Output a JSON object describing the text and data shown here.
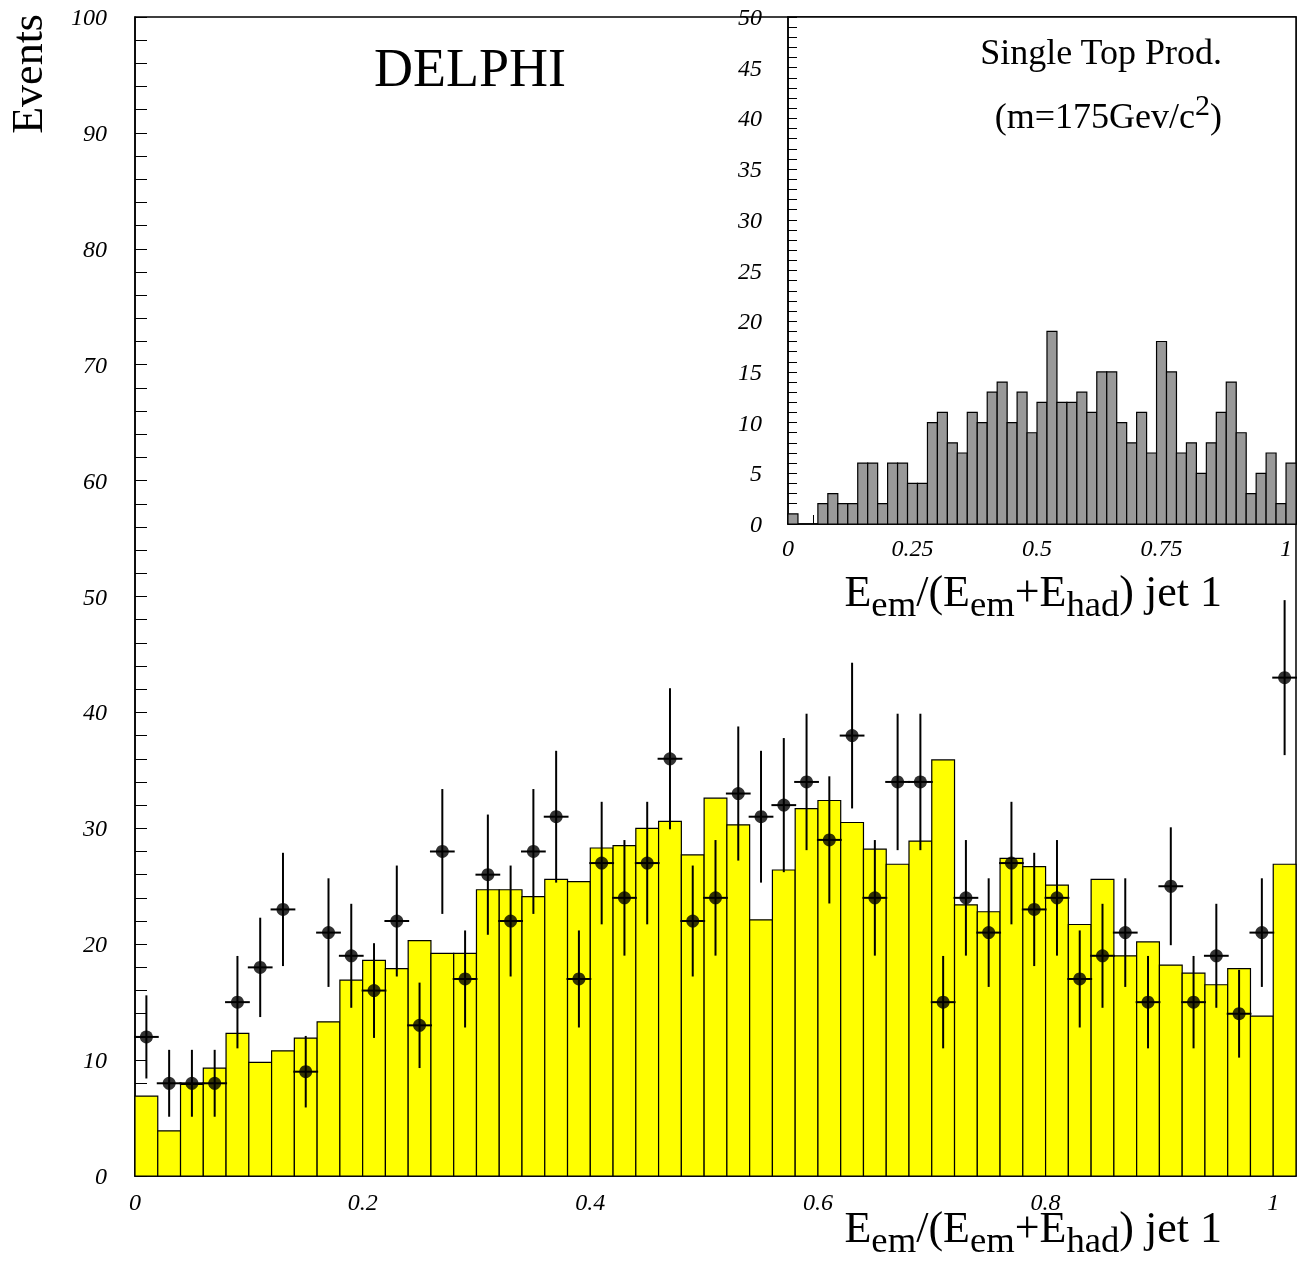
{
  "chart_data": [
    {
      "type": "histogram",
      "annotations": [
        "DELPHI"
      ],
      "xlabel": "E$_{em}$/(E$_{em}$+E$_{had}$) jet 1",
      "ylabel": "Events",
      "xlim": [
        0,
        1.02
      ],
      "marker": "circle",
      "xticks": [
        0,
        {
          "value": 0.05,
          "label": null
        },
        {
          "value": 0.1,
          "label": null
        },
        {
          "value": 0.15,
          "label": null
        },
        0.2,
        {
          "value": 0.25,
          "label": null
        },
        {
          "value": 0.3,
          "label": null
        },
        {
          "value": 0.35,
          "label": null
        },
        0.4,
        {
          "value": 0.45,
          "label": null
        },
        {
          "value": 0.5,
          "label": null
        },
        {
          "value": 0.55,
          "label": null
        },
        0.6,
        {
          "value": 0.65,
          "label": null
        },
        {
          "value": 0.7,
          "label": null
        },
        {
          "value": 0.75,
          "label": null
        },
        0.8,
        {
          "value": 0.85,
          "label": null
        },
        {
          "value": 0.9,
          "label": null
        },
        {
          "value": 0.95,
          "label": null
        },
        1
      ],
      "ylim": [
        0,
        100
      ],
      "yticks": [
        0,
        {
          "value": 2,
          "label": null
        },
        {
          "value": 4,
          "label": null
        },
        {
          "value": 6,
          "label": null
        },
        {
          "value": 8,
          "label": null
        },
        10,
        {
          "value": 12,
          "label": null
        },
        {
          "value": 14,
          "label": null
        },
        {
          "value": 16,
          "label": null
        },
        {
          "value": 18,
          "label": null
        },
        20,
        {
          "value": 22,
          "label": null
        },
        {
          "value": 24,
          "label": null
        },
        {
          "value": 26,
          "label": null
        },
        {
          "value": 28,
          "label": null
        },
        30,
        {
          "value": 32,
          "label": null
        },
        {
          "value": 34,
          "label": null
        },
        {
          "value": 36,
          "label": null
        },
        {
          "value": 38,
          "label": null
        },
        40,
        {
          "value": 42,
          "label": null
        },
        {
          "value": 44,
          "label": null
        },
        {
          "value": 46,
          "label": null
        },
        {
          "value": 48,
          "label": null
        },
        50,
        {
          "value": 52,
          "label": null
        },
        {
          "value": 54,
          "label": null
        },
        {
          "value": 56,
          "label": null
        },
        {
          "value": 58,
          "label": null
        },
        60,
        {
          "value": 62,
          "label": null
        },
        {
          "value": 64,
          "label": null
        },
        {
          "value": 66,
          "label": null
        },
        {
          "value": 68,
          "label": null
        },
        70,
        {
          "value": 72,
          "label": null
        },
        {
          "value": 74,
          "label": null
        },
        {
          "value": 76,
          "label": null
        },
        {
          "value": 78,
          "label": null
        },
        80,
        {
          "value": 82,
          "label": null
        },
        {
          "value": 84,
          "label": null
        },
        {
          "value": 86,
          "label": null
        },
        {
          "value": 88,
          "label": null
        },
        90,
        {
          "value": 92,
          "label": null
        },
        {
          "value": 94,
          "label": null
        },
        {
          "value": 96,
          "label": null
        },
        {
          "value": 98,
          "label": null
        },
        100
      ],
      "bins": [
        0,
        0.02,
        0.04,
        0.06,
        0.08,
        0.1,
        0.12,
        0.14,
        0.16,
        0.18,
        0.2,
        0.22,
        0.24,
        0.26,
        0.28,
        0.3,
        0.32,
        0.34,
        0.36,
        0.38,
        0.4,
        0.42,
        0.44,
        0.46,
        0.48,
        0.5,
        0.52,
        0.54,
        0.56,
        0.58,
        0.6,
        0.62,
        0.64,
        0.66,
        0.68,
        0.7,
        0.72,
        0.74,
        0.76,
        0.78,
        0.8,
        0.82,
        0.84,
        0.86,
        0.88,
        0.9,
        0.92,
        0.94,
        0.96,
        0.98,
        1,
        1.02
      ],
      "series": [
        {
          "type": "histogram",
          "color": "#ffff00",
          "values": [
            6.9,
            3.9,
            7.9,
            9.3,
            12.3,
            9.8,
            10.8,
            11.9,
            13.3,
            16.9,
            18.6,
            17.9,
            20.3,
            19.2,
            19.2,
            24.7,
            24.7,
            24.1,
            25.6,
            25.4,
            28.3,
            28.5,
            30.0,
            30.6,
            27.7,
            32.6,
            30.3,
            22.1,
            26.4,
            31.7,
            32.4,
            30.5,
            28.2,
            26.9,
            28.9,
            35.9,
            23.4,
            22.8,
            27.4,
            26.7,
            25.1,
            21.7,
            25.6,
            19.0,
            20.2,
            18.2,
            17.5,
            16.5,
            17.9,
            13.8,
            26.9
          ]
        },
        {
          "type": "scatter",
          "color": "#000000",
          "x": [
            0.01,
            0.03,
            0.05,
            0.07,
            0.09,
            0.11,
            0.13,
            0.15,
            0.17,
            0.19,
            0.21,
            0.23,
            0.25,
            0.27,
            0.29,
            0.31,
            0.33,
            0.35,
            0.37,
            0.39,
            0.41,
            0.43,
            0.45,
            0.47,
            0.49,
            0.51,
            0.53,
            0.55,
            0.57,
            0.59,
            0.61,
            0.63,
            0.65,
            0.67,
            0.69,
            0.71,
            0.73,
            0.75,
            0.77,
            0.79,
            0.81,
            0.83,
            0.85,
            0.87,
            0.89,
            0.91,
            0.93,
            0.95,
            0.97,
            0.99,
            1.01
          ],
          "values": [
            12,
            8,
            8,
            8,
            15,
            18,
            23,
            9,
            21,
            19,
            16,
            22,
            13,
            28,
            17,
            26,
            22,
            28,
            31,
            17,
            27,
            24,
            27,
            36,
            22,
            24,
            33,
            31,
            32,
            34,
            29,
            38,
            24,
            34,
            34,
            15,
            24,
            21,
            27,
            23,
            24,
            17,
            19,
            21,
            15,
            25,
            15,
            19,
            14,
            21,
            43
          ],
          "errors": [
            3.5,
            2.8,
            2.8,
            2.8,
            3.9,
            4.2,
            4.8,
            3.0,
            4.6,
            4.4,
            4.0,
            4.7,
            3.6,
            5.3,
            4.1,
            5.1,
            4.7,
            5.3,
            5.6,
            4.1,
            5.2,
            4.9,
            5.2,
            6.0,
            4.7,
            4.9,
            5.7,
            5.6,
            5.7,
            5.8,
            5.4,
            6.2,
            4.9,
            5.8,
            5.8,
            3.9,
            4.9,
            4.6,
            5.2,
            4.8,
            4.9,
            4.1,
            4.4,
            4.6,
            3.9,
            5.0,
            3.9,
            4.4,
            3.7,
            4.6,
            6.6
          ],
          "xerrors": [
            0.01,
            0.01,
            0.01,
            0.01,
            0.01,
            0.01,
            0.01,
            0.01,
            0.01,
            0.01,
            0.01,
            0.01,
            0.01,
            0.01,
            0.01,
            0.01,
            0.01,
            0.01,
            0.01,
            0.01,
            0.01,
            0.01,
            0.01,
            0.01,
            0.01,
            0.01,
            0.01,
            0.01,
            0.01,
            0.01,
            0.01,
            0.01,
            0.01,
            0.01,
            0.01,
            0.01,
            0.01,
            0.01,
            0.01,
            0.01,
            0.01,
            0.01,
            0.01,
            0.01,
            0.01,
            0.01,
            0.01,
            0.01,
            0.01,
            0.01,
            0.01
          ]
        }
      ]
    },
    {
      "type": "histogram",
      "annotations": [
        "Single Top Prod.",
        "(m=175Gev/c$^{2}$)"
      ],
      "xlabel": "E$_{em}$/(E$_{em}$+E$_{had}$) jet 1",
      "xlim": [
        0,
        1.02
      ],
      "color": "#999999",
      "xticks": [
        0,
        {
          "value": 0.05,
          "label": null
        },
        {
          "value": 0.1,
          "label": null
        },
        {
          "value": 0.15,
          "label": null
        },
        {
          "value": 0.2,
          "label": null
        },
        0.25,
        {
          "value": 0.3,
          "label": null
        },
        {
          "value": 0.35,
          "label": null
        },
        {
          "value": 0.4,
          "label": null
        },
        {
          "value": 0.45,
          "label": null
        },
        0.5,
        {
          "value": 0.55,
          "label": null
        },
        {
          "value": 0.6,
          "label": null
        },
        {
          "value": 0.65,
          "label": null
        },
        {
          "value": 0.7,
          "label": null
        },
        0.75,
        {
          "value": 0.8,
          "label": null
        },
        {
          "value": 0.85,
          "label": null
        },
        {
          "value": 0.9,
          "label": null
        },
        {
          "value": 0.95,
          "label": null
        },
        1
      ],
      "ylim": [
        0,
        50
      ],
      "yticks": [
        0,
        {
          "value": 1,
          "label": null
        },
        {
          "value": 2,
          "label": null
        },
        {
          "value": 3,
          "label": null
        },
        {
          "value": 4,
          "label": null
        },
        5,
        {
          "value": 6,
          "label": null
        },
        {
          "value": 7,
          "label": null
        },
        {
          "value": 8,
          "label": null
        },
        {
          "value": 9,
          "label": null
        },
        10,
        {
          "value": 11,
          "label": null
        },
        {
          "value": 12,
          "label": null
        },
        {
          "value": 13,
          "label": null
        },
        {
          "value": 14,
          "label": null
        },
        15,
        {
          "value": 16,
          "label": null
        },
        {
          "value": 17,
          "label": null
        },
        {
          "value": 18,
          "label": null
        },
        {
          "value": 19,
          "label": null
        },
        20,
        {
          "value": 21,
          "label": null
        },
        {
          "value": 22,
          "label": null
        },
        {
          "value": 23,
          "label": null
        },
        {
          "value": 24,
          "label": null
        },
        25,
        {
          "value": 26,
          "label": null
        },
        {
          "value": 27,
          "label": null
        },
        {
          "value": 28,
          "label": null
        },
        {
          "value": 29,
          "label": null
        },
        30,
        {
          "value": 31,
          "label": null
        },
        {
          "value": 32,
          "label": null
        },
        {
          "value": 33,
          "label": null
        },
        {
          "value": 34,
          "label": null
        },
        35,
        {
          "value": 36,
          "label": null
        },
        {
          "value": 37,
          "label": null
        },
        {
          "value": 38,
          "label": null
        },
        {
          "value": 39,
          "label": null
        },
        40,
        {
          "value": 41,
          "label": null
        },
        {
          "value": 42,
          "label": null
        },
        {
          "value": 43,
          "label": null
        },
        {
          "value": 44,
          "label": null
        },
        45,
        {
          "value": 46,
          "label": null
        },
        {
          "value": 47,
          "label": null
        },
        {
          "value": 48,
          "label": null
        },
        {
          "value": 49,
          "label": null
        },
        50
      ],
      "bins": [
        0,
        0.02,
        0.04,
        0.06,
        0.08,
        0.1,
        0.12,
        0.14,
        0.16,
        0.18,
        0.2,
        0.22,
        0.24,
        0.26,
        0.28,
        0.3,
        0.32,
        0.34,
        0.36,
        0.38,
        0.4,
        0.42,
        0.44,
        0.46,
        0.48,
        0.5,
        0.52,
        0.54,
        0.56,
        0.58,
        0.6,
        0.62,
        0.64,
        0.66,
        0.68,
        0.7,
        0.72,
        0.74,
        0.76,
        0.78,
        0.8,
        0.82,
        0.84,
        0.86,
        0.88,
        0.9,
        0.92,
        0.94,
        0.96,
        0.98,
        1,
        1.02
      ],
      "values": [
        1,
        0,
        0,
        2,
        3,
        2,
        2,
        6,
        6,
        2,
        6,
        6,
        4,
        4,
        10,
        11,
        8,
        7,
        11,
        10,
        13,
        14,
        10,
        13,
        9,
        12,
        19,
        12,
        12,
        13,
        11,
        15,
        15,
        10,
        8,
        11,
        7,
        18,
        15,
        7,
        8,
        5,
        8,
        11,
        14,
        9,
        3,
        5,
        7,
        2,
        6
      ]
    }
  ]
}
